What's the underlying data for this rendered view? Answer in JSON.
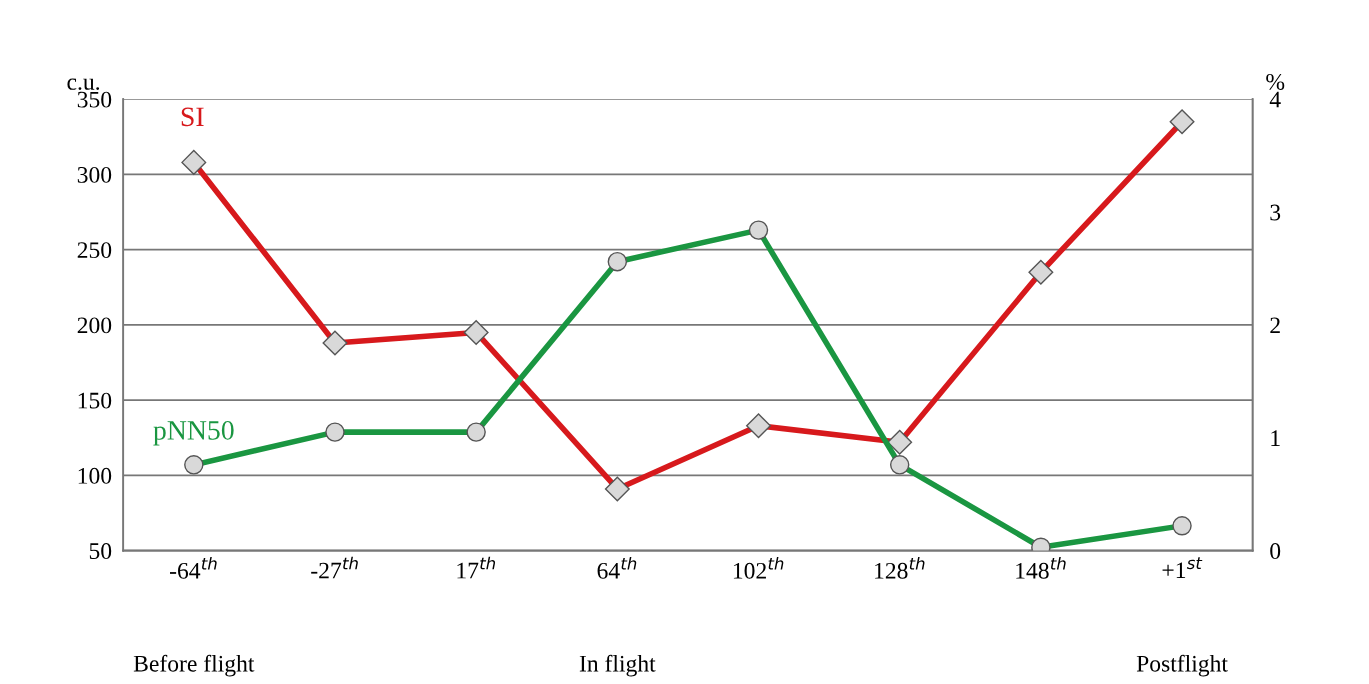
{
  "chart_data": {
    "type": "line",
    "categories": [
      "-64$^{th}$",
      "-27$^{th}$",
      "17$^{th}$",
      "64$^{th}$",
      "102$^{th}$",
      "128$^{th}$",
      "148$^{th}$",
      "+1$^{st}$"
    ],
    "series": [
      {
        "name": "SI",
        "color": "#d7191c",
        "marker": "diamond",
        "values": [
          308,
          188,
          195,
          91,
          133,
          122,
          235,
          335
        ]
      },
      {
        "name": "pNN50",
        "color": "#1a9641",
        "marker": "circle",
        "axis": "y2",
        "values": [
          0.76,
          1.05,
          1.05,
          2.56,
          2.84,
          0.76,
          0.03,
          0.22
        ]
      }
    ],
    "ylabel": "c.u.",
    "y2label": "%",
    "ylim": [
      50,
      350
    ],
    "yticks": [
      50,
      100,
      150,
      200,
      250,
      300,
      350
    ],
    "y2lim": [
      0,
      4
    ],
    "y2ticks": [
      0,
      1,
      2,
      3,
      4
    ],
    "grid": "y",
    "legend": false,
    "line_style": "solid",
    "annotations": [
      "Before flight",
      "In flight",
      "Postflight"
    ]
  }
}
